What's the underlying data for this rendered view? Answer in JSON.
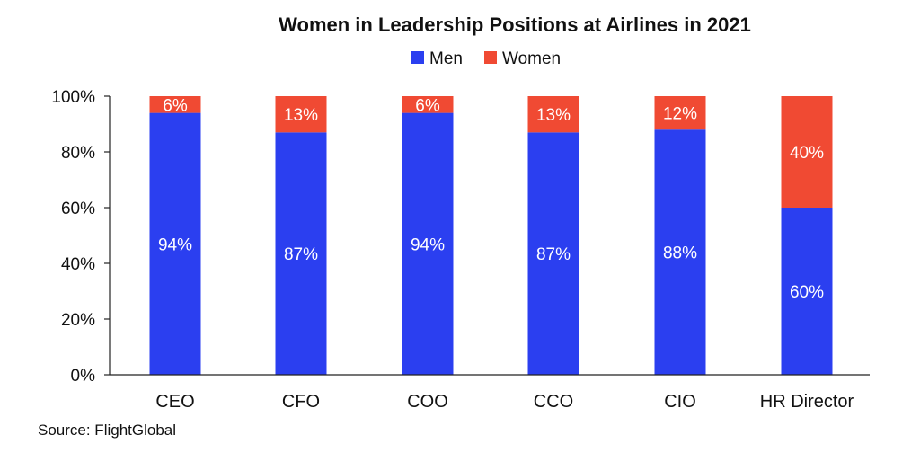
{
  "chart_data": {
    "type": "bar",
    "stacked": true,
    "title": "Women in Leadership Positions at Airlines in 2021",
    "categories": [
      "CEO",
      "CFO",
      "COO",
      "CCO",
      "CIO",
      "HR Director"
    ],
    "series": [
      {
        "name": "Men",
        "color": "#2b3ff0",
        "values": [
          94,
          87,
          94,
          87,
          88,
          60
        ],
        "labels": [
          "94%",
          "87%",
          "94%",
          "87%",
          "88%",
          "60%"
        ]
      },
      {
        "name": "Women",
        "color": "#f04a33",
        "values": [
          6,
          13,
          6,
          13,
          12,
          40
        ],
        "labels": [
          "6%",
          "13%",
          "6%",
          "13%",
          "12%",
          "40%"
        ]
      }
    ],
    "ylim": [
      0,
      100
    ],
    "yticks": [
      {
        "value": 0,
        "label": "0%"
      },
      {
        "value": 20,
        "label": "20%"
      },
      {
        "value": 40,
        "label": "40%"
      },
      {
        "value": 60,
        "label": "60%"
      },
      {
        "value": 80,
        "label": "80%"
      },
      {
        "value": 100,
        "label": "100%"
      }
    ],
    "legend_position": "top-center",
    "grid": false,
    "source": "Source: FlightGlobal"
  }
}
